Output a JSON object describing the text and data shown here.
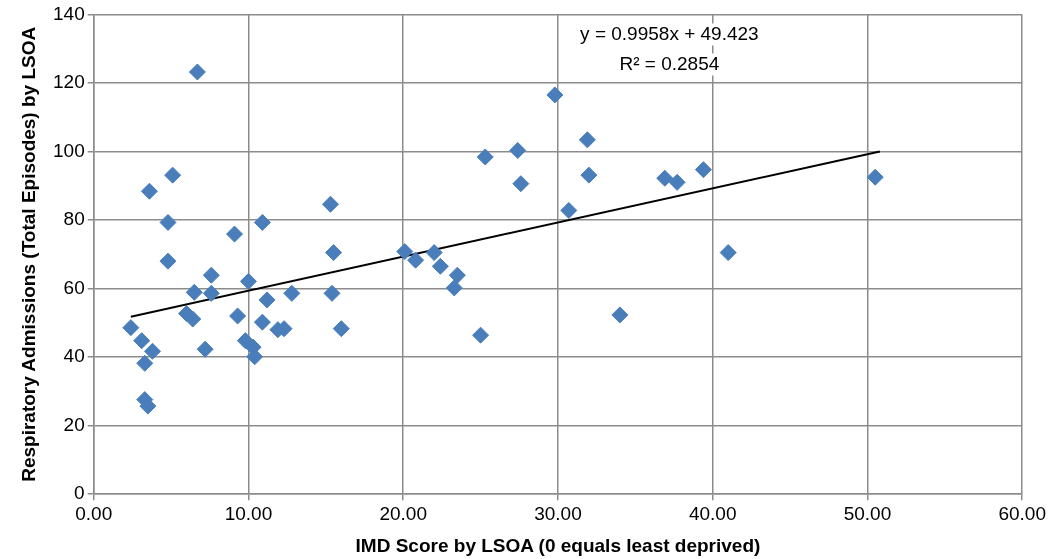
{
  "chart_data": {
    "type": "scatter",
    "xlabel": "IMD Score by LSOA (0 equals least deprived)",
    "ylabel": "Respiratory Admissions (Total Episodes) by LSOA",
    "marker": "diamond",
    "grid": true,
    "legend": false,
    "xlim": [
      0,
      60
    ],
    "xticks": [
      {
        "value": 0,
        "label": "0.00"
      },
      {
        "value": 10,
        "label": "10.00"
      },
      {
        "value": 20,
        "label": "20.00"
      },
      {
        "value": 30,
        "label": "30.00"
      },
      {
        "value": 40,
        "label": "40.00"
      },
      {
        "value": 50,
        "label": "50.00"
      },
      {
        "value": 60,
        "label": "60.00"
      }
    ],
    "ylim": [
      0,
      140
    ],
    "yticks": [
      0,
      20,
      40,
      60,
      80,
      100,
      120,
      140
    ],
    "annotations": [
      "y = 0.9958x + 49.423",
      "R² = 0.2854"
    ],
    "series": [
      {
        "color": "#4a7ebb",
        "x": [
          6.7,
          29.8,
          31.9,
          27.4,
          25.3,
          5.1,
          32.0,
          3.6,
          27.6,
          36.9,
          37.7,
          39.4,
          50.5,
          30.7,
          15.3,
          4.8,
          10.9,
          9.1,
          15.5,
          20.1,
          20.8,
          22.0,
          22.4,
          23.5,
          23.3,
          25.0,
          34.0,
          41.0,
          4.8,
          7.6,
          10.0,
          6.5,
          7.6,
          12.8,
          15.4,
          11.2,
          6.0,
          6.4,
          9.3,
          2.4,
          10.9,
          11.9,
          12.3,
          16.0,
          3.1,
          3.8,
          7.2,
          9.8,
          10.3,
          10.4,
          3.3,
          3.3,
          3.5
        ],
        "values": [
          123.2,
          116.5,
          103.4,
          100.3,
          98.4,
          93.1,
          93.1,
          88.4,
          90.6,
          92.2,
          91.0,
          94.7,
          92.5,
          82.8,
          84.6,
          79.3,
          79.3,
          75.9,
          70.5,
          70.8,
          68.3,
          70.5,
          66.5,
          63.9,
          60.2,
          46.4,
          52.3,
          70.5,
          68.0,
          63.9,
          62.1,
          58.9,
          58.6,
          58.6,
          58.6,
          56.7,
          52.7,
          51.1,
          52.0,
          48.6,
          50.2,
          48.0,
          48.3,
          48.3,
          44.8,
          41.7,
          42.3,
          44.8,
          42.9,
          40.1,
          38.2,
          27.6,
          25.7
        ]
      },
      {
        "type": "line",
        "color": "#000000",
        "x": [
          2.4,
          50.8
        ],
        "values": [
          51.8,
          100.0
        ],
        "marker": "none"
      }
    ]
  }
}
